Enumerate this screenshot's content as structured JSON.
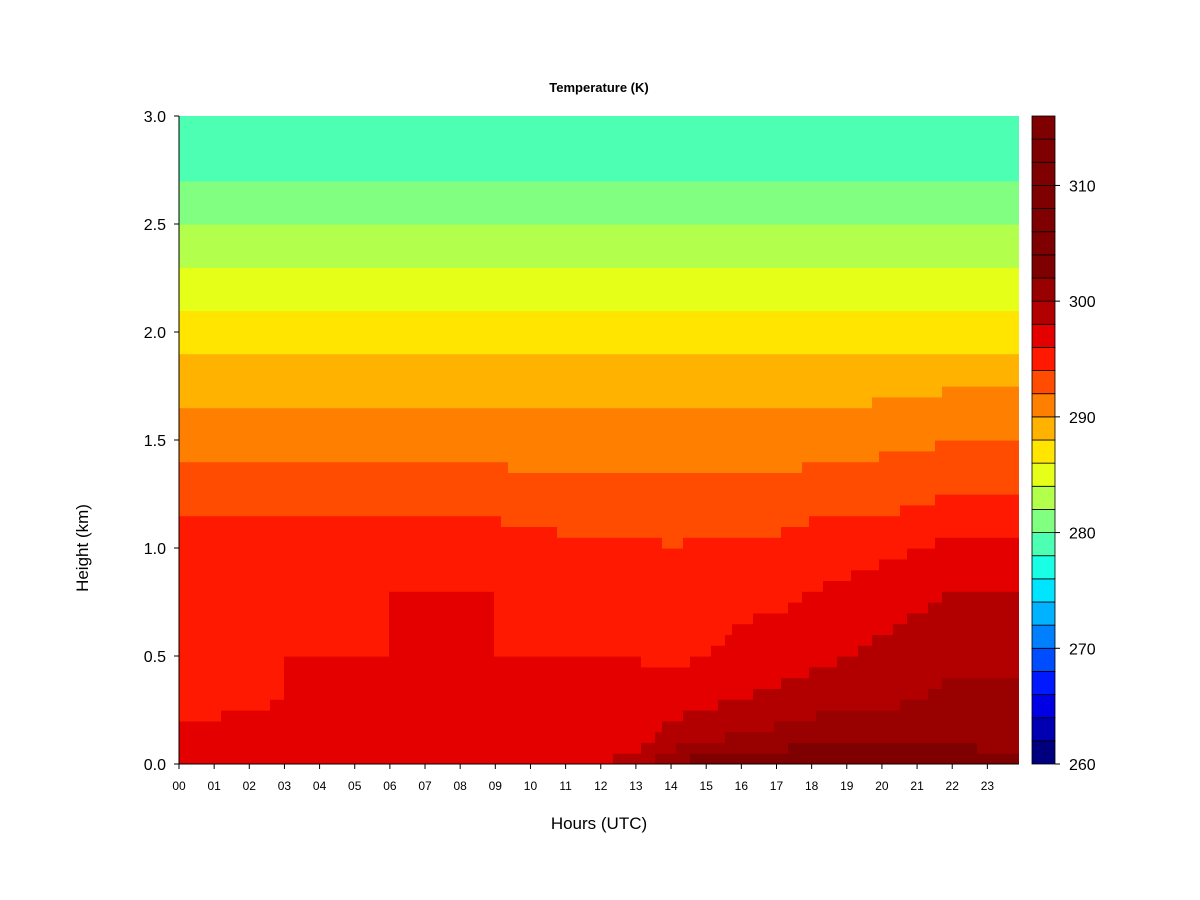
{
  "chart_data": {
    "type": "heatmap",
    "title": "Temperature (K)",
    "xlabel": "Hours (UTC)",
    "ylabel": "Height (km)",
    "xlim": [
      0,
      23.9
    ],
    "ylim": [
      0.0,
      3.0
    ],
    "x_ticks": [
      0,
      1,
      2,
      3,
      4,
      5,
      6,
      7,
      8,
      9,
      10,
      11,
      12,
      13,
      14,
      15,
      16,
      17,
      18,
      19,
      20,
      21,
      22,
      23
    ],
    "x_tick_labels": [
      "00",
      "01",
      "02",
      "03",
      "04",
      "05",
      "06",
      "07",
      "08",
      "09",
      "10",
      "11",
      "12",
      "13",
      "14",
      "15",
      "16",
      "17",
      "18",
      "19",
      "20",
      "21",
      "22",
      "23"
    ],
    "y_ticks": [
      0.0,
      0.5,
      1.0,
      1.5,
      2.0,
      2.5,
      3.0
    ],
    "y_tick_labels": [
      "0.0",
      "0.5",
      "1.0",
      "1.5",
      "2.0",
      "2.5",
      "3.0"
    ],
    "colorbar": {
      "range": [
        260,
        316
      ],
      "step": 2,
      "ticks": [
        260,
        270,
        280,
        290,
        300,
        310
      ],
      "tick_labels": [
        "260",
        "270",
        "280",
        "290",
        "300",
        "310"
      ],
      "colors": [
        "#00007f",
        "#0000b2",
        "#0000e5",
        "#0019ff",
        "#004cff",
        "#0080ff",
        "#00b2ff",
        "#00e5ff",
        "#19ffe5",
        "#4cffb2",
        "#80ff80",
        "#b2ff4c",
        "#e5ff19",
        "#ffe500",
        "#ffb200",
        "#ff8000",
        "#ff4c00",
        "#ff1900",
        "#e50000",
        "#b20000",
        "#990000",
        "#7f0000",
        "#7f0000",
        "#7f0000",
        "#7f0000",
        "#7f0000",
        "#7f0000",
        "#7f0000"
      ]
    },
    "profile_heights_km": [
      0.0,
      0.1,
      0.3,
      0.5,
      0.8,
      1.0,
      1.2,
      1.5,
      1.8,
      2.0,
      2.3,
      2.6,
      2.8,
      3.0
    ],
    "profile_hours": [
      0,
      3,
      6,
      9,
      11,
      12,
      13,
      14,
      15,
      16,
      17,
      18,
      19,
      20,
      21,
      22,
      23.9
    ],
    "temperature_K": [
      [
        297.5,
        296.5,
        295.5,
        295.5,
        295.5,
        295.0,
        293.5,
        291.0,
        289.0,
        287.0,
        284.0,
        281.0,
        279.0,
        278.0
      ],
      [
        297.5,
        296.5,
        296.0,
        296.0,
        295.5,
        295.0,
        293.5,
        291.0,
        289.0,
        287.0,
        284.0,
        281.0,
        279.0,
        278.0
      ],
      [
        297.5,
        297.0,
        296.0,
        296.0,
        296.0,
        295.0,
        293.5,
        291.0,
        289.0,
        287.0,
        284.0,
        281.0,
        279.0,
        278.0
      ],
      [
        297.5,
        297.0,
        296.5,
        296.0,
        296.0,
        295.0,
        293.5,
        291.0,
        289.0,
        287.0,
        284.0,
        281.0,
        279.0,
        278.5
      ],
      [
        297.5,
        297.0,
        296.5,
        296.0,
        295.5,
        294.5,
        293.0,
        291.0,
        289.0,
        287.0,
        284.0,
        281.0,
        279.0,
        278.5
      ],
      [
        298.0,
        297.0,
        296.5,
        296.0,
        295.0,
        294.5,
        293.0,
        291.0,
        289.0,
        287.0,
        284.0,
        281.0,
        279.0,
        278.5
      ],
      [
        299.0,
        297.5,
        296.5,
        296.0,
        295.0,
        294.5,
        293.0,
        291.0,
        289.0,
        287.0,
        284.0,
        281.0,
        279.0,
        278.5
      ],
      [
        302.0,
        299.0,
        297.0,
        295.5,
        294.5,
        294.0,
        293.0,
        291.0,
        289.0,
        287.0,
        284.0,
        281.0,
        279.0,
        278.5
      ],
      [
        303.5,
        300.0,
        297.5,
        296.0,
        295.0,
        294.5,
        293.0,
        291.0,
        289.0,
        287.0,
        284.0,
        281.0,
        279.0,
        278.5
      ],
      [
        304.0,
        300.5,
        298.0,
        296.5,
        295.5,
        294.5,
        293.0,
        291.0,
        289.0,
        287.0,
        284.0,
        281.0,
        279.0,
        278.5
      ],
      [
        304.5,
        301.0,
        298.5,
        297.0,
        295.5,
        294.5,
        293.0,
        291.0,
        289.0,
        287.0,
        284.0,
        281.0,
        279.0,
        278.0
      ],
      [
        305.0,
        301.5,
        299.0,
        297.5,
        296.0,
        295.0,
        293.5,
        291.0,
        289.0,
        287.0,
        284.0,
        281.0,
        279.0,
        278.0
      ],
      [
        305.0,
        302.0,
        299.5,
        298.0,
        296.5,
        295.0,
        293.5,
        291.0,
        289.0,
        287.0,
        284.0,
        281.0,
        279.0,
        278.0
      ],
      [
        304.5,
        301.5,
        299.5,
        298.5,
        297.0,
        295.5,
        293.5,
        291.5,
        289.0,
        287.0,
        284.0,
        281.0,
        279.0,
        278.0
      ],
      [
        304.5,
        301.5,
        300.0,
        299.0,
        297.5,
        296.0,
        294.0,
        291.5,
        289.0,
        287.0,
        284.0,
        281.0,
        279.0,
        278.0
      ],
      [
        304.0,
        301.5,
        300.5,
        299.5,
        298.0,
        296.5,
        294.5,
        292.0,
        289.5,
        287.0,
        284.0,
        281.0,
        279.0,
        278.0
      ],
      [
        304.0,
        301.0,
        300.5,
        299.5,
        298.0,
        296.5,
        294.5,
        292.0,
        289.5,
        287.0,
        284.0,
        281.0,
        279.0,
        278.0
      ]
    ]
  }
}
